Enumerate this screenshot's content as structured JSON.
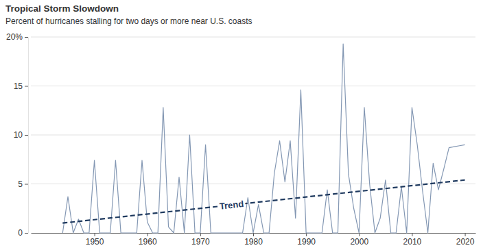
{
  "chart_data": {
    "type": "line",
    "title": "Tropical Storm Slowdown",
    "subtitle": "Percent of hurricanes stalling for two days or more near U.S. coasts",
    "x": [
      1944,
      1945,
      1946,
      1947,
      1948,
      1949,
      1950,
      1951,
      1952,
      1953,
      1954,
      1955,
      1956,
      1957,
      1958,
      1959,
      1960,
      1961,
      1962,
      1963,
      1964,
      1965,
      1966,
      1967,
      1968,
      1969,
      1970,
      1971,
      1972,
      1973,
      1974,
      1975,
      1976,
      1977,
      1978,
      1979,
      1980,
      1981,
      1982,
      1983,
      1984,
      1985,
      1986,
      1987,
      1988,
      1989,
      1990,
      1991,
      1992,
      1993,
      1994,
      1995,
      1996,
      1997,
      1998,
      1999,
      2000,
      2001,
      2002,
      2003,
      2004,
      2005,
      2006,
      2007,
      2008,
      2009,
      2010,
      2011,
      2012,
      2013,
      2014,
      2015,
      2016,
      2017,
      2018,
      2019,
      2020
    ],
    "series": [
      {
        "color": "#8397b3",
        "line_style": "solid",
        "values": [
          0,
          3.7,
          0,
          1.4,
          0,
          0,
          7.4,
          0,
          0,
          0,
          7.4,
          0,
          0,
          0,
          0,
          7.4,
          1.1,
          0,
          0,
          12.8,
          0.6,
          0,
          5.7,
          0,
          10,
          0,
          0,
          9,
          0,
          0,
          0,
          0,
          0,
          0,
          0,
          3.6,
          0,
          2.9,
          0,
          0,
          6.1,
          9.4,
          5.2,
          9.4,
          1.5,
          14.6,
          0,
          0,
          0,
          0,
          4.4,
          0,
          0,
          19.3,
          6,
          2.5,
          0,
          12.8,
          5,
          0,
          1.5,
          5.4,
          0,
          0,
          4.7,
          0,
          12.8,
          9,
          4.3,
          0,
          7.1,
          4.4,
          6.5,
          8.7,
          8.8,
          8.9,
          9.0
        ]
      },
      {
        "name": "Trend",
        "color": "#1f3a5f",
        "line_style": "dashed",
        "x": [
          1944,
          2020
        ],
        "values": [
          1.0,
          5.4
        ]
      }
    ],
    "xlim": [
      1938,
      2022
    ],
    "xticks": [
      1950,
      1960,
      1970,
      1980,
      1990,
      2000,
      2010,
      2020
    ],
    "ylim": [
      0,
      20
    ],
    "yticks": [
      0,
      5,
      10,
      15,
      {
        "value": 20,
        "label": "20%"
      }
    ],
    "grid": true
  }
}
